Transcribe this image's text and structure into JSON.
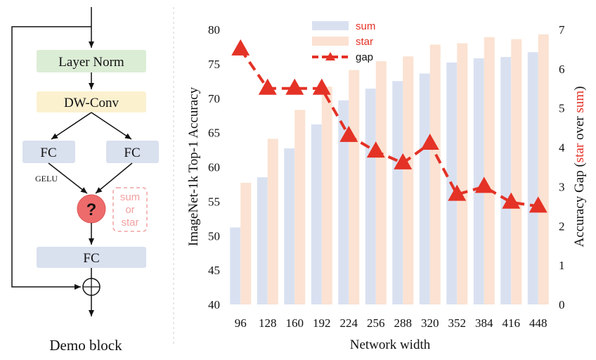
{
  "colors": {
    "layer_norm_fill": "#dcedd6",
    "dwconv_fill": "#fbf1cf",
    "fc_fill": "#d9e0ee",
    "op_circle": "#ee6b6b",
    "op_choice": "#f2a0a0",
    "sum_bar": "#d9e1f1",
    "star_bar": "#fbe2d2",
    "gap_line": "#e43226",
    "star_over_sum_accent": "#e43226"
  },
  "block": {
    "title": "Demo block",
    "layer_norm": "Layer Norm",
    "dwconv": "DW-Conv",
    "fc_left": "FC",
    "fc_right": "FC",
    "gelu": "GELU",
    "op_symbol": "?",
    "choice_line1": "sum",
    "choice_line2": "or",
    "choice_line3": "star",
    "fc_bottom": "FC",
    "residual_symbol": "⊕"
  },
  "chart_data": {
    "type": "bar",
    "xlabel": "Network width",
    "ylabel_left": "ImageNet-1k Top-1 Accuracy",
    "ylabel_right_prefix": "Accuracy Gap (",
    "ylabel_right_star": "star",
    "ylabel_right_mid": " over ",
    "ylabel_right_sum": "sum",
    "ylabel_right_suffix": ")",
    "categories": [
      "96",
      "128",
      "160",
      "192",
      "224",
      "256",
      "288",
      "320",
      "352",
      "384",
      "416",
      "448"
    ],
    "ylim_left": [
      40,
      80
    ],
    "yticks_left": [
      "40",
      "45",
      "50",
      "55",
      "60",
      "65",
      "70",
      "75",
      "80"
    ],
    "ylim_right": [
      0,
      7
    ],
    "yticks_right": [
      "0",
      "1",
      "2",
      "3",
      "4",
      "5",
      "6",
      "7"
    ],
    "legend_position": "top-center",
    "series": [
      {
        "name": "sum",
        "axis": "left",
        "type": "bar",
        "values": [
          51.2,
          58.5,
          62.7,
          66.2,
          69.7,
          71.4,
          72.5,
          73.6,
          75.2,
          75.8,
          76.0,
          76.7
        ]
      },
      {
        "name": "star",
        "axis": "left",
        "type": "bar",
        "values": [
          57.7,
          64.1,
          68.3,
          71.7,
          74.1,
          75.4,
          76.1,
          77.8,
          78.0,
          78.9,
          78.6,
          79.3
        ]
      },
      {
        "name": "gap",
        "axis": "right",
        "type": "line",
        "values": [
          6.5,
          5.5,
          5.5,
          5.5,
          4.3,
          3.9,
          3.6,
          4.1,
          2.8,
          3.0,
          2.6,
          2.5
        ]
      }
    ]
  }
}
